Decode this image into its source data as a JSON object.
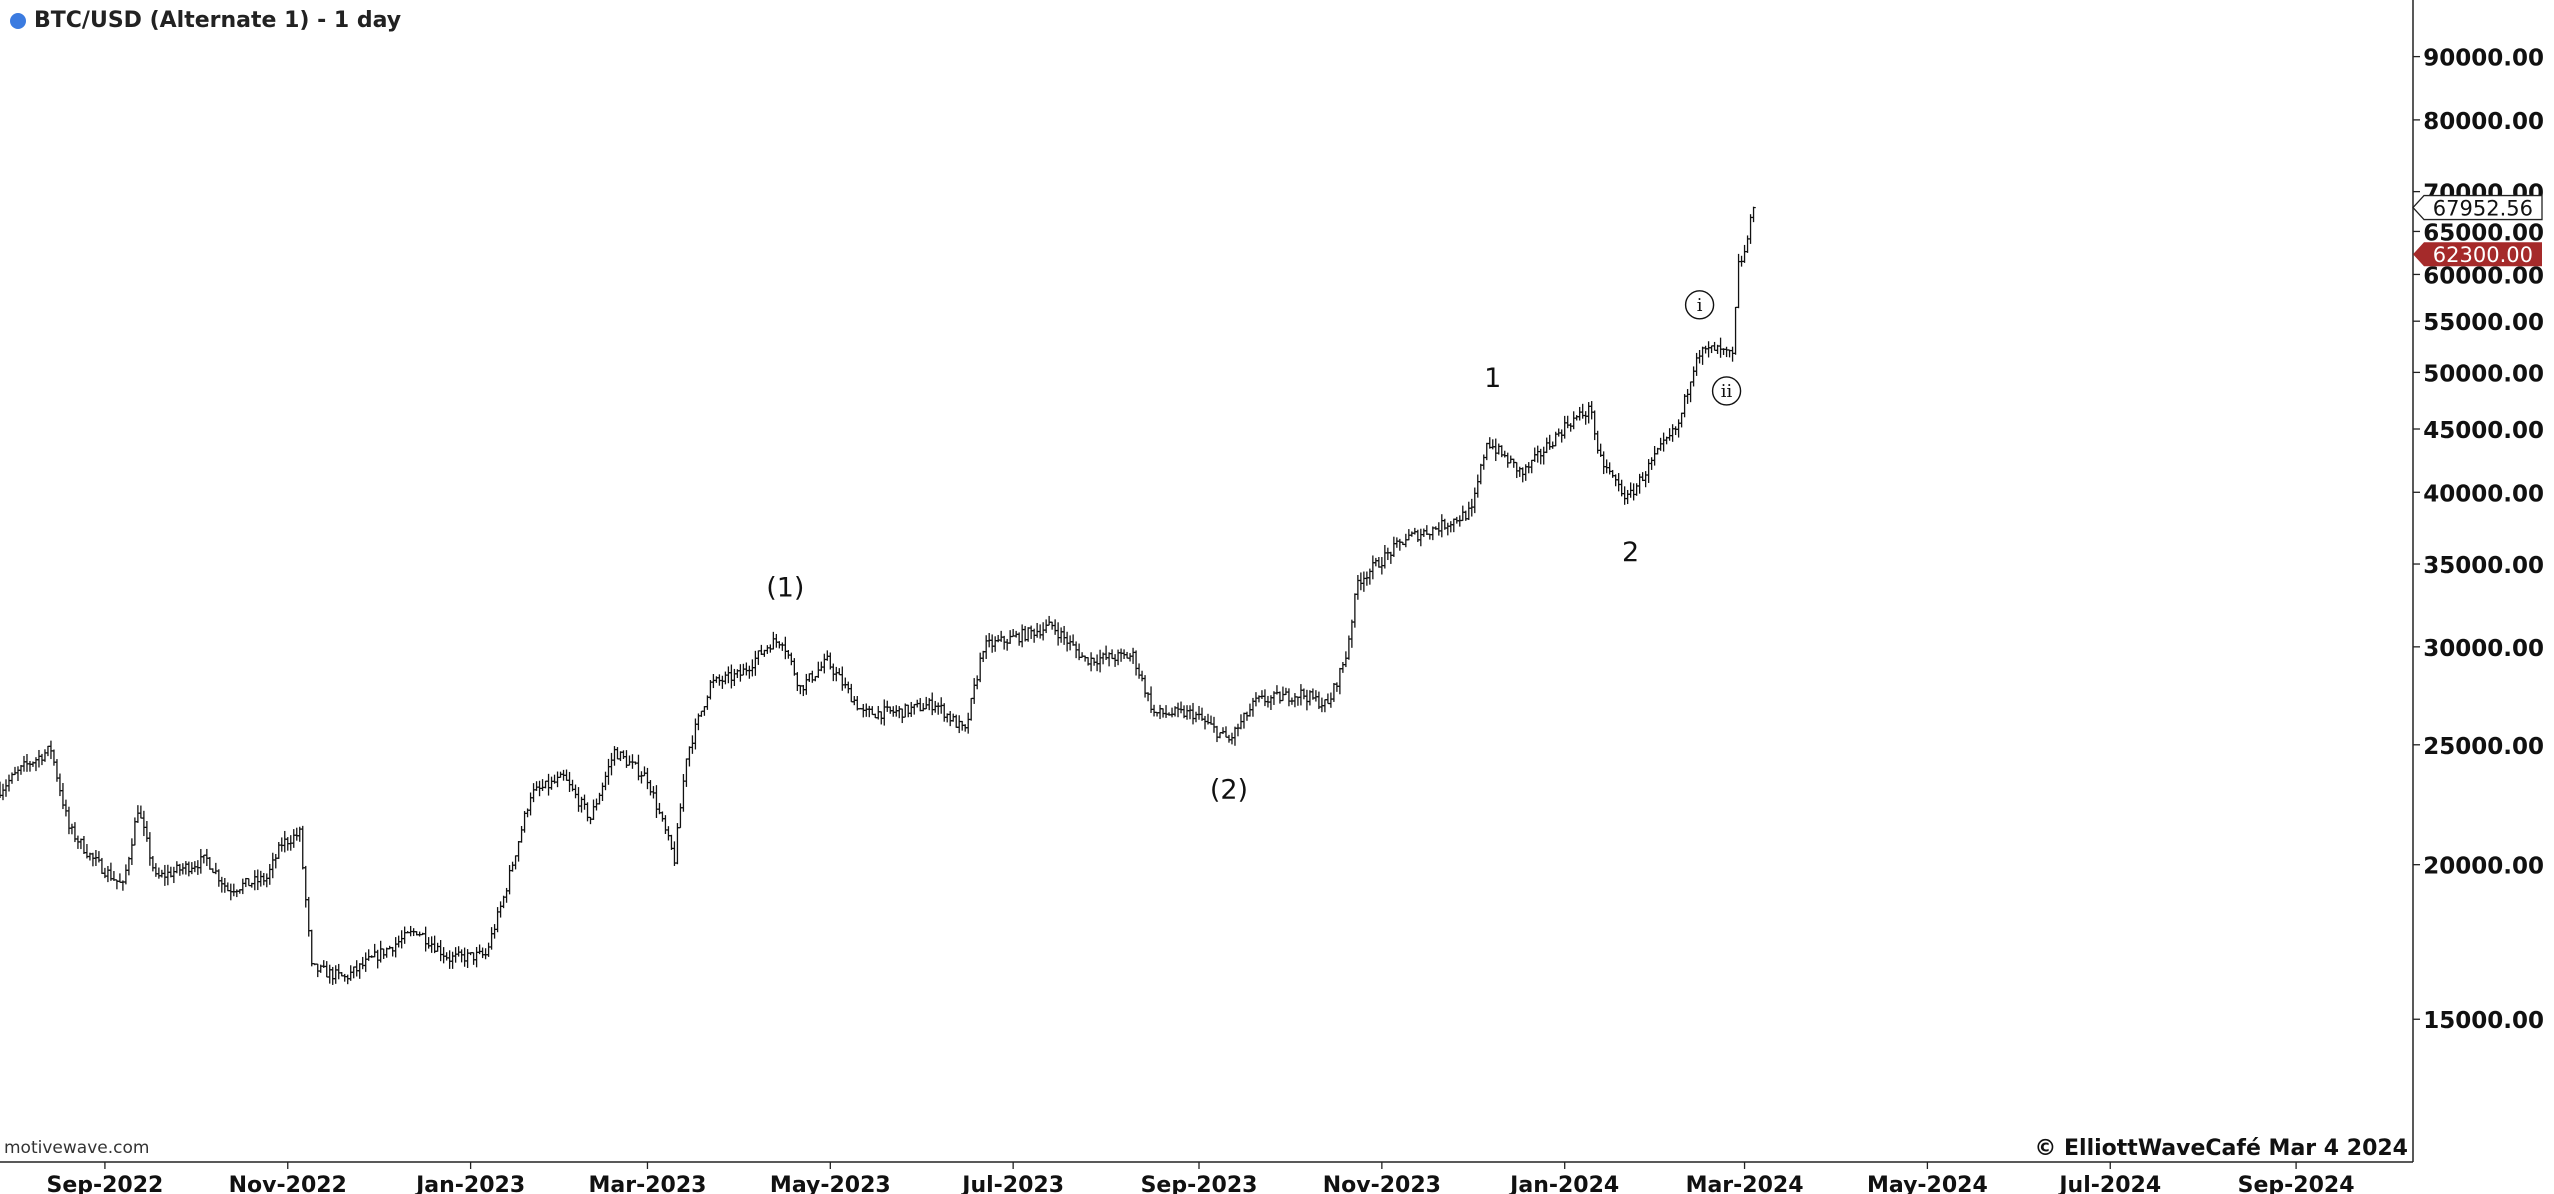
{
  "header": {
    "title": "BTC/USD (Alternate 1) - 1 day",
    "series_dot_color": "#3b7be0"
  },
  "footer": {
    "watermark": "motivewave.com",
    "copyright": "© ElliottWaveCafé Mar 4 2024"
  },
  "price_labels": {
    "current": "67952.56",
    "marker": "62300.00",
    "marker_color": "#a52a2a"
  },
  "chart_data": {
    "type": "ohlc",
    "title": "BTC/USD (Alternate 1) - 1 day",
    "y_scale": "log",
    "ylim": [
      11500,
      100000
    ],
    "xlim": [
      "2022-07-28",
      "2024-10-10"
    ],
    "grid": false,
    "y_ticks": [
      "90000.00",
      "80000.00",
      "70000.00",
      "65000.00",
      "60000.00",
      "55000.00",
      "50000.00",
      "45000.00",
      "40000.00",
      "35000.00",
      "30000.00",
      "25000.00",
      "20000.00",
      "15000.00"
    ],
    "x_ticks": [
      {
        "label": "Sep-2022",
        "date": "2022-09-01"
      },
      {
        "label": "Nov-2022",
        "date": "2022-11-01"
      },
      {
        "label": "Jan-2023",
        "date": "2023-01-01"
      },
      {
        "label": "Mar-2023",
        "date": "2023-03-01"
      },
      {
        "label": "May-2023",
        "date": "2023-05-01"
      },
      {
        "label": "Jul-2023",
        "date": "2023-07-01"
      },
      {
        "label": "Sep-2023",
        "date": "2023-09-01"
      },
      {
        "label": "Nov-2023",
        "date": "2023-11-01"
      },
      {
        "label": "Jan-2024",
        "date": "2024-01-01"
      },
      {
        "label": "Mar-2024",
        "date": "2024-03-01"
      },
      {
        "label": "May-2024",
        "date": "2024-05-01"
      },
      {
        "label": "Jul-2024",
        "date": "2024-07-01"
      },
      {
        "label": "Sep-2024",
        "date": "2024-09-01"
      }
    ],
    "price_path": [
      [
        "2022-07-28",
        23000
      ],
      [
        "2022-08-05",
        24000
      ],
      [
        "2022-08-14",
        24800
      ],
      [
        "2022-08-20",
        21400
      ],
      [
        "2022-08-28",
        20200
      ],
      [
        "2022-09-07",
        19200
      ],
      [
        "2022-09-12",
        22200
      ],
      [
        "2022-09-18",
        19500
      ],
      [
        "2022-10-05",
        20200
      ],
      [
        "2022-10-12",
        19100
      ],
      [
        "2022-10-25",
        19500
      ],
      [
        "2022-10-30",
        20800
      ],
      [
        "2022-11-05",
        21200
      ],
      [
        "2022-11-09",
        16500
      ],
      [
        "2022-11-20",
        16200
      ],
      [
        "2022-12-01",
        16900
      ],
      [
        "2022-12-14",
        17700
      ],
      [
        "2022-12-25",
        16800
      ],
      [
        "2023-01-06",
        16900
      ],
      [
        "2023-01-12",
        18800
      ],
      [
        "2023-01-21",
        22800
      ],
      [
        "2023-02-01",
        23500
      ],
      [
        "2023-02-10",
        21800
      ],
      [
        "2023-02-18",
        24700
      ],
      [
        "2023-03-01",
        23500
      ],
      [
        "2023-03-10",
        20200
      ],
      [
        "2023-03-14",
        24500
      ],
      [
        "2023-03-22",
        28000
      ],
      [
        "2023-04-01",
        28500
      ],
      [
        "2023-04-11",
        30200
      ],
      [
        "2023-04-15",
        30400
      ],
      [
        "2023-04-21",
        27800
      ],
      [
        "2023-04-30",
        29200
      ],
      [
        "2023-05-12",
        26500
      ],
      [
        "2023-05-25",
        26600
      ],
      [
        "2023-06-05",
        27000
      ],
      [
        "2023-06-15",
        25600
      ],
      [
        "2023-06-21",
        30000
      ],
      [
        "2023-07-01",
        30500
      ],
      [
        "2023-07-14",
        31200
      ],
      [
        "2023-07-25",
        29300
      ],
      [
        "2023-08-10",
        29500
      ],
      [
        "2023-08-17",
        26500
      ],
      [
        "2023-08-30",
        26500
      ],
      [
        "2023-09-11",
        25200
      ],
      [
        "2023-09-20",
        27100
      ],
      [
        "2023-10-05",
        27500
      ],
      [
        "2023-10-14",
        26900
      ],
      [
        "2023-10-20",
        29500
      ],
      [
        "2023-10-24",
        33900
      ],
      [
        "2023-11-09",
        36700
      ],
      [
        "2023-11-20",
        37500
      ],
      [
        "2023-12-01",
        38600
      ],
      [
        "2023-12-06",
        44000
      ],
      [
        "2023-12-18",
        41400
      ],
      [
        "2024-01-02",
        45500
      ],
      [
        "2024-01-10",
        46700
      ],
      [
        "2024-01-12",
        42800
      ],
      [
        "2024-01-22",
        39500
      ],
      [
        "2024-02-01",
        43000
      ],
      [
        "2024-02-08",
        45300
      ],
      [
        "2024-02-14",
        51800
      ],
      [
        "2024-02-20",
        52200
      ],
      [
        "2024-02-26",
        51500
      ],
      [
        "2024-02-28",
        61000
      ],
      [
        "2024-03-01",
        62400
      ],
      [
        "2024-03-04",
        67952
      ]
    ],
    "wave_labels": [
      {
        "label": "(1)",
        "date": "2023-04-16",
        "price": 33500
      },
      {
        "label": "(2)",
        "date": "2023-09-11",
        "price": 23000
      },
      {
        "label": "1",
        "date": "2023-12-08",
        "price": 49500
      },
      {
        "label": "2",
        "date": "2024-01-23",
        "price": 35800
      },
      {
        "label": "i",
        "date": "2024-02-15",
        "price": 56700,
        "circled": true
      },
      {
        "label": "ii",
        "date": "2024-02-24",
        "price": 48300,
        "circled": true
      }
    ]
  }
}
